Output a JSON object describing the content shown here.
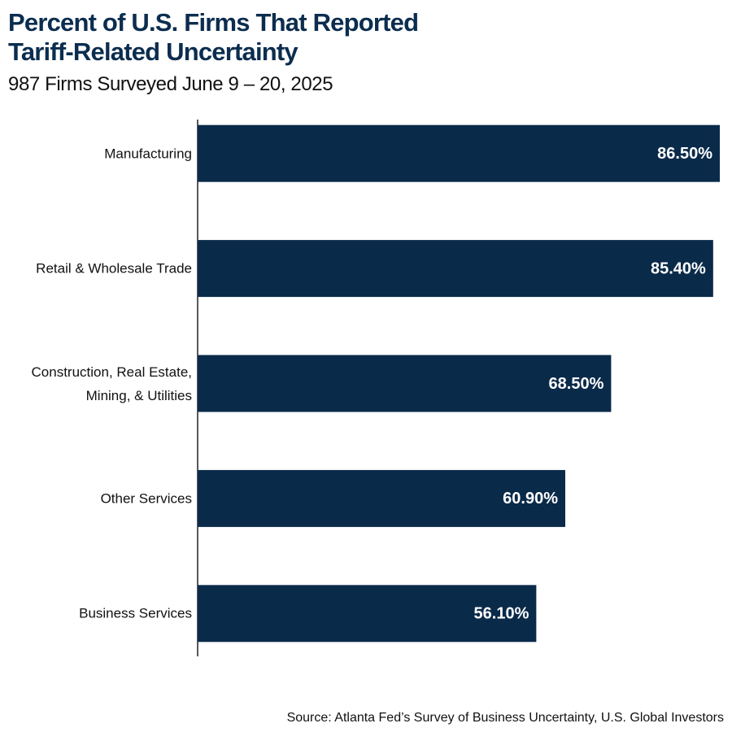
{
  "chart_data": {
    "type": "bar",
    "orientation": "horizontal",
    "title": "Percent of U.S. Firms That Reported\nTariff-Related Uncertainty",
    "subtitle": "987 Firms Surveyed June 9 – 20, 2025",
    "categories": [
      "Manufacturing",
      "Retail & Wholesale Trade",
      "Construction, Real Estate,\nMining, & Utilities",
      "Other Services",
      "Business Services"
    ],
    "values": [
      86.5,
      85.4,
      68.5,
      60.9,
      56.1
    ],
    "value_labels": [
      "86.50%",
      "85.40%",
      "68.50%",
      "60.90%",
      "56.10%"
    ],
    "color": "#0a2a4a",
    "xlim": [
      0,
      86.5
    ],
    "source": "Source: Atlanta Fed’s Survey of Business Uncertainty, U.S. Global Investors"
  }
}
